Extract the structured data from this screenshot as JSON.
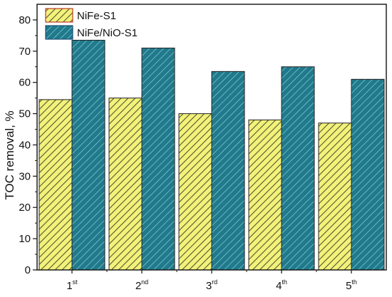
{
  "chart_data": {
    "type": "bar",
    "categories": [
      {
        "main": "1",
        "sup": "st"
      },
      {
        "main": "2",
        "sup": "nd"
      },
      {
        "main": "3",
        "sup": "rd"
      },
      {
        "main": "4",
        "sup": "th"
      },
      {
        "main": "5",
        "sup": "th"
      }
    ],
    "series": [
      {
        "name": "NiFe-S1",
        "values": [
          54.5,
          55,
          50,
          48,
          47
        ],
        "fill": "#f2f27a",
        "hatch": "#555533",
        "legend_border": "#c0392b"
      },
      {
        "name": "NiFe/NiO-S1",
        "values": [
          73.5,
          71,
          63.5,
          65,
          61
        ],
        "fill": "#1f7a8c",
        "hatch": "#9ccfd8",
        "legend_border": "#1b4f72"
      }
    ],
    "ylabel": "TOC removal, %",
    "xlabel": "",
    "ylim": [
      0,
      85
    ],
    "yticks": [
      "0",
      "10",
      "20",
      "30",
      "40",
      "50",
      "60",
      "70",
      "80"
    ],
    "grid": false,
    "legend_position": "top-left"
  }
}
